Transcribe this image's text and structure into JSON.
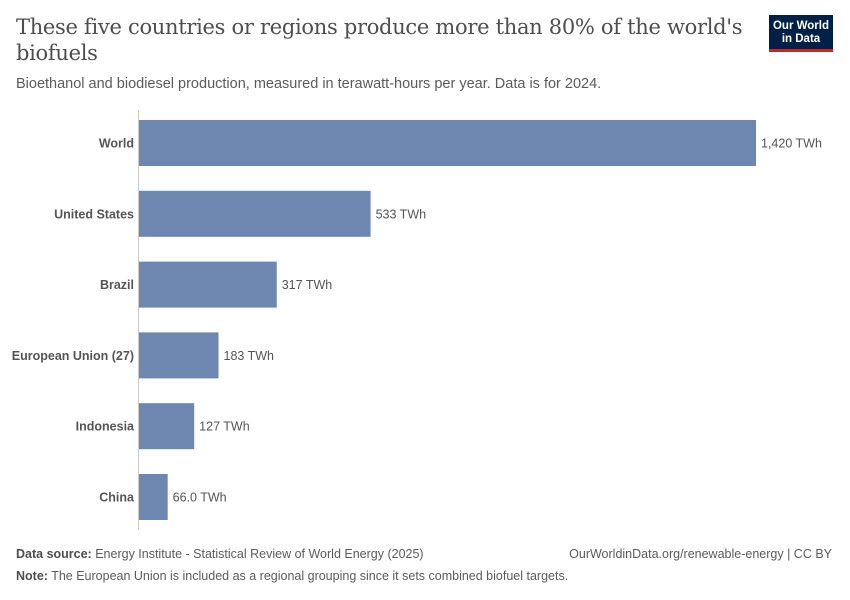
{
  "header": {
    "title": "These five countries or regions produce more than 80% of the world's biofuels",
    "subtitle": "Bioethanol and biodiesel production, measured in terawatt-hours per year. Data is for 2024.",
    "logo_text": "Our World in Data"
  },
  "chart_data": {
    "type": "bar",
    "orientation": "horizontal",
    "categories": [
      "World",
      "United States",
      "Brazil",
      "European Union (27)",
      "Indonesia",
      "China"
    ],
    "values": [
      1420,
      533,
      317,
      183,
      127,
      66.0
    ],
    "data_labels": [
      "1,420 TWh",
      "533 TWh",
      "317 TWh",
      "183 TWh",
      "127 TWh",
      "66.0 TWh"
    ],
    "unit": "TWh",
    "xlim": [
      0,
      1420
    ],
    "grid": false,
    "bar_color": "#6d87b0"
  },
  "footer": {
    "source_label": "Data source:",
    "source": " Energy Institute - Statistical Review of World Energy (2025)",
    "url": "OurWorldinData.org/renewable-energy | CC BY",
    "note_label": "Note:",
    "note": " The European Union is included as a regional grouping since it sets combined biofuel targets."
  }
}
